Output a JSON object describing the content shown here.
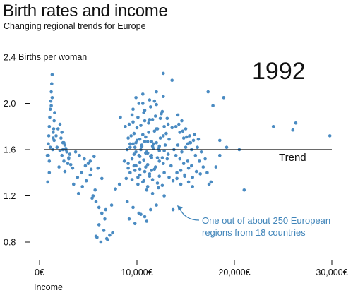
{
  "chart_data": {
    "type": "scatter",
    "title": "Birth rates and income",
    "subtitle": "Changing regional trends for Europe",
    "ylabel": "Births per woman",
    "xlabel": "Income",
    "ylim": [
      0.8,
      2.4
    ],
    "xlim": [
      0,
      30000
    ],
    "y_ticks": [
      0.8,
      1.2,
      1.6,
      2.0,
      2.4
    ],
    "y_tick_labels": [
      "0.8",
      "1.2",
      "1.6",
      "2.0",
      "2.4"
    ],
    "x_ticks": [
      0,
      10000,
      20000,
      30000
    ],
    "x_tick_labels": [
      "0€",
      "10,000€",
      "20,000€",
      "30,000€"
    ],
    "year": "1992",
    "trend": {
      "label": "Trend",
      "y": 1.6,
      "x_range": [
        500,
        30000
      ]
    },
    "annotation": "One out of about 250 European\nregions from 18 countries",
    "grid": false,
    "point_color": "#4a8bc2",
    "x": [
      800,
      900,
      950,
      1000,
      1050,
      1100,
      1150,
      1200,
      1250,
      1300,
      1350,
      1400,
      1450,
      1500,
      1550,
      1200,
      1300,
      1400,
      1000,
      1100,
      900,
      850,
      1000,
      1500,
      1700,
      1900,
      2100,
      2300,
      2500,
      2700,
      2300,
      2500,
      2400,
      2200,
      2600,
      2800,
      3000,
      2000,
      2600,
      2900,
      3100,
      1800,
      2100,
      2400,
      2700,
      3000,
      3200,
      3400,
      3700,
      4100,
      4600,
      5000,
      5300,
      3500,
      3900,
      4300,
      4700,
      5200,
      5600,
      4000,
      4400,
      4800,
      5200,
      6000,
      6400,
      5500,
      5800,
      6100,
      6400,
      6700,
      6100,
      6600,
      5800,
      7000,
      7200,
      7500,
      5900,
      6300,
      6900,
      6800,
      7400,
      5400,
      5700,
      7800,
      8200,
      9000,
      9300,
      9600,
      9900,
      10200,
      10500,
      10800,
      11100,
      11400,
      11700,
      12000,
      12300,
      12600,
      12900,
      13200,
      9100,
      9400,
      9700,
      10000,
      10300,
      10600,
      10900,
      11200,
      11500,
      11800,
      12100,
      12400,
      12700,
      13000,
      13300,
      8800,
      9200,
      9600,
      10000,
      10400,
      10800,
      11200,
      11600,
      12000,
      12400,
      12800,
      13200,
      13600,
      8700,
      9100,
      9500,
      9900,
      10300,
      10700,
      11100,
      11500,
      11900,
      12300,
      12700,
      13100,
      13500,
      9300,
      9800,
      10300,
      10800,
      11300,
      11800,
      12300,
      12800,
      13300,
      9500,
      10100,
      10700,
      11300,
      11900,
      12500,
      13100,
      9600,
      10200,
      10800,
      11400,
      12000,
      12600,
      9900,
      10600,
      11300,
      12000,
      12700,
      10100,
      10600,
      11100,
      11600,
      12100,
      12600,
      11000,
      11600,
      12200,
      12800,
      9800,
      10400,
      11000,
      11600,
      12200,
      12800,
      9700,
      10300,
      10900,
      11500,
      12100,
      9300,
      9900,
      10500,
      11100,
      11700,
      12300,
      9100,
      9700,
      10300,
      10900,
      11500,
      8900,
      9500,
      10100,
      10700,
      11300,
      9000,
      9600,
      10200,
      10800,
      11400,
      12000,
      9200,
      9800,
      10400,
      11000,
      8300,
      10600,
      11800,
      12700,
      13600,
      14000,
      14400,
      14800,
      15200,
      15600,
      16000,
      16400,
      16800,
      14200,
      14600,
      15000,
      15400,
      15800,
      16200,
      16600,
      17000,
      14100,
      14500,
      14900,
      15300,
      15700,
      16100,
      16500,
      14300,
      14700,
      15100,
      15500,
      15900,
      16300,
      14000,
      14400,
      14800,
      15200,
      15600,
      13800,
      14200,
      14600,
      15000,
      15400,
      13700,
      14100,
      14500,
      14900,
      15300,
      15700,
      17300,
      17800,
      18500,
      18900,
      17200,
      17600,
      18100,
      19200,
      17400,
      20500,
      21000,
      24000,
      26000,
      26300,
      29800,
      18500,
      13700
    ],
    "y": [
      1.55,
      1.65,
      1.72,
      1.8,
      1.88,
      1.95,
      2.02,
      2.1,
      2.17,
      2.25,
      1.6,
      1.7,
      1.78,
      1.85,
      1.92,
      1.98,
      2.05,
      1.75,
      1.5,
      1.62,
      1.55,
      1.32,
      1.4,
      1.68,
      1.72,
      1.78,
      1.82,
      1.75,
      1.66,
      1.6,
      1.55,
      1.5,
      1.6,
      1.7,
      1.64,
      1.58,
      1.52,
      1.45,
      1.41,
      1.48,
      1.56,
      1.62,
      1.59,
      1.66,
      1.61,
      1.53,
      1.47,
      1.44,
      1.58,
      1.55,
      1.52,
      1.48,
      1.43,
      1.3,
      1.36,
      1.4,
      1.46,
      1.5,
      1.54,
      1.22,
      1.28,
      1.33,
      1.38,
      1.44,
      1.35,
      1.2,
      1.15,
      1.1,
      1.05,
      1.0,
      0.95,
      0.9,
      0.85,
      0.82,
      0.86,
      0.88,
      0.84,
      0.8,
      0.83,
      1.08,
      1.12,
      1.18,
      1.25,
      1.26,
      1.3,
      1.6,
      1.62,
      1.65,
      1.58,
      1.55,
      1.63,
      1.67,
      1.57,
      1.54,
      1.61,
      1.66,
      1.59,
      1.53,
      1.64,
      1.56,
      1.7,
      1.72,
      1.74,
      1.68,
      1.69,
      1.73,
      1.71,
      1.75,
      1.67,
      1.76,
      1.78,
      1.7,
      1.72,
      1.74,
      1.69,
      1.8,
      1.82,
      1.84,
      1.79,
      1.81,
      1.85,
      1.83,
      1.86,
      1.78,
      1.87,
      1.8,
      1.82,
      1.79,
      1.5,
      1.48,
      1.52,
      1.46,
      1.49,
      1.51,
      1.47,
      1.53,
      1.45,
      1.5,
      1.48,
      1.52,
      1.46,
      1.4,
      1.42,
      1.38,
      1.41,
      1.39,
      1.43,
      1.37,
      1.4,
      1.36,
      1.9,
      1.88,
      1.92,
      1.86,
      1.89,
      1.91,
      1.87,
      1.95,
      2.0,
      1.94,
      1.97,
      1.99,
      1.93,
      2.05,
      2.08,
      2.03,
      2.1,
      2.06,
      1.3,
      1.32,
      1.28,
      1.34,
      1.31,
      1.29,
      1.25,
      1.22,
      1.27,
      1.2,
      1.62,
      1.6,
      1.58,
      1.63,
      1.61,
      1.59,
      1.56,
      1.54,
      1.57,
      1.55,
      1.53,
      1.65,
      1.66,
      1.64,
      1.67,
      1.65,
      1.63,
      1.44,
      1.46,
      1.43,
      1.45,
      1.42,
      1.35,
      1.34,
      1.36,
      1.33,
      1.37,
      1.15,
      1.1,
      1.05,
      1.02,
      1.08,
      1.12,
      1.0,
      0.96,
      1.04,
      0.98,
      1.88,
      2.0,
      2.02,
      2.26,
      2.2,
      1.8,
      1.75,
      1.7,
      1.65,
      1.6,
      1.55,
      1.5,
      1.45,
      1.9,
      1.85,
      1.78,
      1.72,
      1.68,
      1.62,
      1.58,
      1.52,
      1.4,
      1.42,
      1.38,
      1.44,
      1.36,
      1.41,
      1.39,
      1.82,
      1.76,
      1.71,
      1.66,
      1.73,
      1.69,
      1.55,
      1.52,
      1.48,
      1.5,
      1.46,
      1.6,
      1.64,
      1.58,
      1.62,
      1.66,
      1.33,
      1.35,
      1.3,
      1.37,
      1.32,
      1.28,
      2.1,
      1.98,
      1.55,
      2.05,
      1.4,
      1.32,
      1.45,
      1.62,
      1.3,
      1.6,
      1.25,
      1.8,
      1.77,
      1.83,
      1.72,
      1.68,
      1.08
    ]
  }
}
